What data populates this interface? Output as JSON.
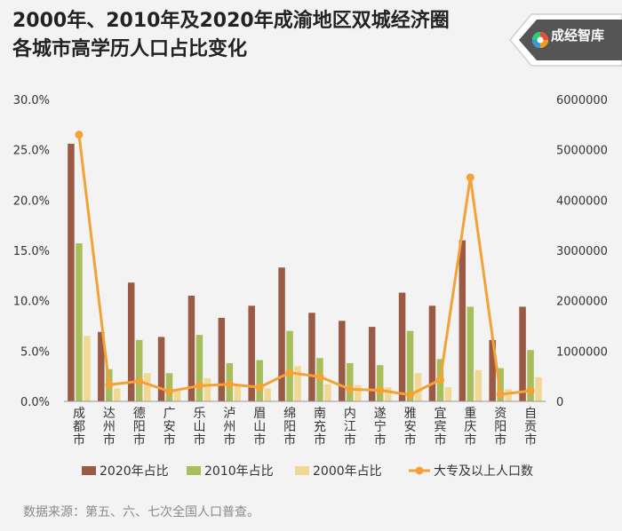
{
  "header": {
    "title_line1": "2000年、2010年及2020年成渝地区双城经济圈",
    "title_line2": "各城市高学历人口占比变化"
  },
  "logo": {
    "text": "成经智库",
    "icon": "brand-swirl-icon"
  },
  "source": "数据来源：第五、六、七次全国人口普查。",
  "chart_data": {
    "type": "bar",
    "categories": [
      "成都市",
      "达州市",
      "德阳市",
      "广安市",
      "乐山市",
      "泸州市",
      "眉山市",
      "绵阳市",
      "南充市",
      "内江市",
      "遂宁市",
      "雅安市",
      "宜宾市",
      "重庆市",
      "资阳市",
      "自贡市"
    ],
    "y_left": {
      "ylim": [
        0,
        30
      ],
      "ticks": [
        "0.0%",
        "5.0%",
        "10.0%",
        "15.0%",
        "20.0%",
        "25.0%",
        "30.0%"
      ]
    },
    "y_right": {
      "ylim": [
        0,
        6000000
      ],
      "ticks": [
        "0",
        "1000000",
        "2000000",
        "3000000",
        "4000000",
        "5000000",
        "6000000"
      ]
    },
    "series": [
      {
        "name": "2020年占比",
        "type": "bar",
        "axis": "left",
        "color": "#9a5a43",
        "values": [
          25.6,
          6.9,
          11.8,
          6.4,
          10.5,
          8.3,
          9.5,
          13.3,
          8.8,
          8.0,
          7.4,
          10.8,
          9.5,
          16.0,
          6.1,
          9.4
        ]
      },
      {
        "name": "2010年占比",
        "type": "bar",
        "axis": "left",
        "color": "#a7be5a",
        "values": [
          15.7,
          3.2,
          6.1,
          2.8,
          6.6,
          3.8,
          4.1,
          7.0,
          4.3,
          3.8,
          3.6,
          7.0,
          4.2,
          9.4,
          3.3,
          5.1
        ]
      },
      {
        "name": "2000年占比",
        "type": "bar",
        "axis": "left",
        "color": "#f1d895",
        "values": [
          6.5,
          1.3,
          2.8,
          1.2,
          2.3,
          1.6,
          1.3,
          3.5,
          1.7,
          1.6,
          1.4,
          2.8,
          1.4,
          3.1,
          1.2,
          2.4
        ]
      },
      {
        "name": "大专及以上人口数",
        "type": "line",
        "axis": "right",
        "color": "#f2a237",
        "values": [
          5300000,
          330000,
          400000,
          200000,
          310000,
          340000,
          280000,
          570000,
          490000,
          240000,
          220000,
          130000,
          430000,
          4450000,
          140000,
          210000
        ]
      }
    ],
    "legend_position": "bottom",
    "grid": false
  }
}
